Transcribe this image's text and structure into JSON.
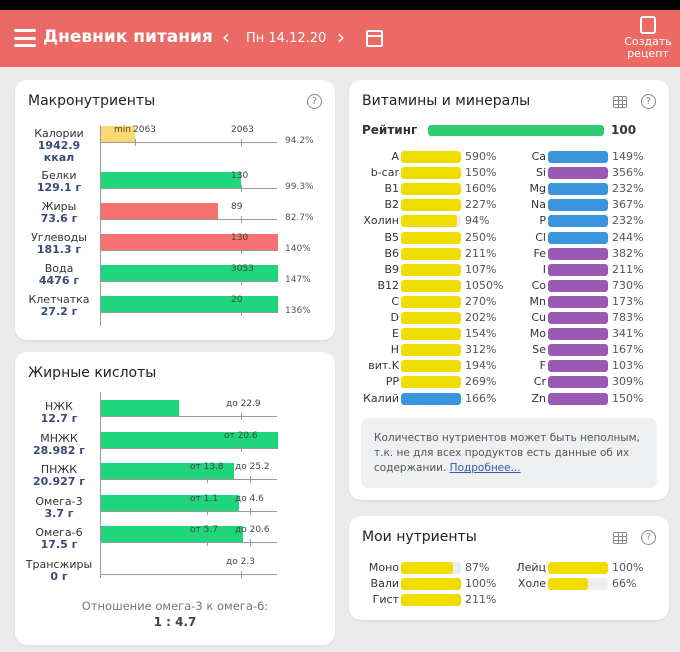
{
  "header": {
    "title": "Дневник питания",
    "date": "Пн 14.12.20",
    "prev": "‹",
    "next": "›",
    "create_recipe": "Создать рецепт"
  },
  "colors": {
    "header": "#ec6a65",
    "green": "#1fd67c",
    "red": "#f87171",
    "yellow": "#f0dd00",
    "blue": "#3b95dc",
    "purple": "#9b59b6",
    "cal": "#fbd970"
  },
  "macro": {
    "title": "Макронутриенты",
    "help": "?",
    "rows": [
      {
        "name": "Калории",
        "value": "1942.9",
        "unit": "ккал",
        "target": "2063",
        "min_label": "min",
        "min_value": "2063",
        "pct": "94.2%",
        "fill": 0.19,
        "color": "#fbd970"
      },
      {
        "name": "Белки",
        "value": "129.1 г",
        "target": "130",
        "pct": "99.3%",
        "fill": 0.79,
        "color": "#1fd67c"
      },
      {
        "name": "Жиры",
        "value": "73.6 г",
        "target": "89",
        "pct": "82.7%",
        "fill": 0.66,
        "color": "#f87171"
      },
      {
        "name": "Углеводы",
        "value": "181.3 г",
        "target": "130",
        "pct": "140%",
        "fill": 1,
        "color": "#f87171"
      },
      {
        "name": "Вода",
        "value": "4476 г",
        "target": "3053",
        "pct": "147%",
        "fill": 1,
        "color": "#1fd67c"
      },
      {
        "name": "Клетчатка",
        "value": "27.2 г",
        "target": "20",
        "pct": "136%",
        "fill": 1,
        "color": "#1fd67c"
      }
    ]
  },
  "fatty": {
    "title": "Жирные кислоты",
    "ratio_label": "Отношение омега-3 к омега-6:",
    "ratio": "1 : 4.7",
    "rows": [
      {
        "name": "НЖК",
        "value": "12.7 г",
        "fill": 0.44,
        "to": "до 22.9"
      },
      {
        "name": "МНЖК",
        "value": "28.982 г",
        "fill": 1,
        "from": "от 20.6"
      },
      {
        "name": "ПНЖК",
        "value": "20.927 г",
        "fill": 0.75,
        "from": "от 13.8",
        "to": "до 25.2"
      },
      {
        "name": "Омега-3",
        "value": "3.7 г",
        "fill": 0.78,
        "from": "от 1.1",
        "to": "до 4.6"
      },
      {
        "name": "Омега-6",
        "value": "17.5 г",
        "fill": 0.8,
        "from": "от 5.7",
        "to": "до 20.6"
      },
      {
        "name": "Трансжиры",
        "value": "0 г",
        "fill": 0,
        "to": "до 2.3"
      }
    ]
  },
  "vitamins": {
    "title": "Витамины и минералы",
    "rating_label": "Рейтинг",
    "rating": "100",
    "rating_fill": 1,
    "left": [
      [
        "A",
        "590%",
        1,
        "y"
      ],
      [
        "b-car",
        "150%",
        1,
        "y"
      ],
      [
        "B1",
        "160%",
        1,
        "y"
      ],
      [
        "B2",
        "227%",
        1,
        "y"
      ],
      [
        "Холин",
        "94%",
        0.94,
        "y"
      ],
      [
        "B5",
        "250%",
        1,
        "y"
      ],
      [
        "B6",
        "211%",
        1,
        "y"
      ],
      [
        "B9",
        "107%",
        1,
        "y"
      ],
      [
        "B12",
        "1050%",
        1,
        "y"
      ],
      [
        "C",
        "270%",
        1,
        "y"
      ],
      [
        "D",
        "202%",
        1,
        "y"
      ],
      [
        "E",
        "154%",
        1,
        "y"
      ],
      [
        "H",
        "312%",
        1,
        "y"
      ],
      [
        "вит.K",
        "194%",
        1,
        "y"
      ],
      [
        "PP",
        "269%",
        1,
        "y"
      ],
      [
        "Калий",
        "166%",
        1,
        "b"
      ]
    ],
    "right": [
      [
        "Ca",
        "149%",
        1,
        "b"
      ],
      [
        "Si",
        "356%",
        1,
        "p"
      ],
      [
        "Mg",
        "232%",
        1,
        "b"
      ],
      [
        "Na",
        "367%",
        1,
        "b"
      ],
      [
        "P",
        "232%",
        1,
        "b"
      ],
      [
        "Cl",
        "244%",
        1,
        "b"
      ],
      [
        "Fe",
        "382%",
        1,
        "p"
      ],
      [
        "I",
        "211%",
        1,
        "p"
      ],
      [
        "Co",
        "730%",
        1,
        "p"
      ],
      [
        "Mn",
        "173%",
        1,
        "p"
      ],
      [
        "Cu",
        "783%",
        1,
        "p"
      ],
      [
        "Mo",
        "341%",
        1,
        "p"
      ],
      [
        "Se",
        "167%",
        1,
        "p"
      ],
      [
        "F",
        "103%",
        1,
        "p"
      ],
      [
        "Cr",
        "309%",
        1,
        "p"
      ],
      [
        "Zn",
        "150%",
        1,
        "p"
      ]
    ],
    "note": "Количество нутриентов может быть неполным, т.к. не для всех продуктов есть данные об их содержании.",
    "note_link": "Подробнее..."
  },
  "my": {
    "title": "Мои нутриенты",
    "left": [
      [
        "Моно",
        "87%",
        0.87
      ],
      [
        "Вали",
        "100%",
        1
      ],
      [
        "Гист",
        "211%",
        1
      ]
    ],
    "right": [
      [
        "Лейц",
        "100%",
        1
      ],
      [
        "Холе",
        "66%",
        0.66
      ]
    ]
  }
}
